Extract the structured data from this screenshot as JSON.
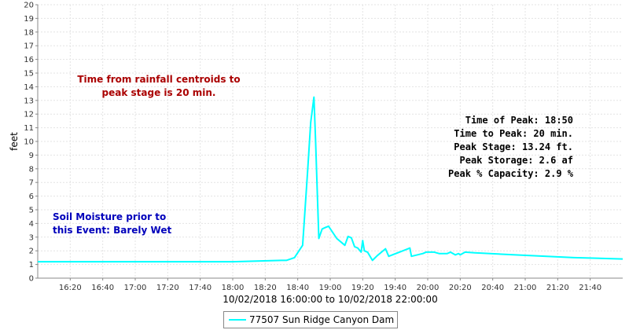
{
  "chart_data": {
    "type": "line",
    "xlabel": "10/02/2018 16:00:00 to 10/02/2018 22:00:00",
    "ylabel": "feet",
    "ylim": [
      0,
      20
    ],
    "yticks": [
      0,
      1,
      2,
      3,
      4,
      5,
      6,
      7,
      8,
      9,
      10,
      11,
      12,
      13,
      14,
      15,
      16,
      17,
      18,
      19,
      20
    ],
    "xlim": [
      "16:00",
      "22:00"
    ],
    "xticks": [
      "16:20",
      "16:40",
      "17:00",
      "17:20",
      "17:40",
      "18:00",
      "18:20",
      "18:40",
      "19:00",
      "19:20",
      "19:40",
      "20:00",
      "20:20",
      "20:40",
      "21:00",
      "21:20",
      "21:40"
    ],
    "grid": true,
    "legend_position": "bottom-center",
    "series": [
      {
        "name": "77507 Sun Ridge Canyon Dam",
        "color": "#00ffff",
        "x": [
          "16:00",
          "18:00",
          "18:30",
          "18:33",
          "18:38",
          "18:43",
          "18:46",
          "18:48",
          "18:50",
          "18:51",
          "18:53",
          "18:55",
          "18:57",
          "18:59",
          "19:04",
          "19:09",
          "19:11",
          "19:13",
          "19:15",
          "19:17",
          "19:19",
          "19:20",
          "19:21",
          "19:23",
          "19:26",
          "19:29",
          "19:34",
          "19:36",
          "19:49",
          "19:50",
          "19:57",
          "19:59",
          "20:04",
          "20:07",
          "20:10",
          "20:12",
          "20:14",
          "20:17",
          "20:19",
          "20:20",
          "20:23",
          "20:29",
          "20:54",
          "21:30",
          "22:00"
        ],
        "values": [
          1.2,
          1.2,
          1.3,
          1.3,
          1.5,
          2.4,
          7.7,
          11.4,
          13.24,
          10.0,
          2.9,
          3.6,
          3.7,
          3.8,
          2.9,
          2.4,
          3.05,
          2.95,
          2.3,
          2.2,
          1.9,
          2.75,
          2.0,
          1.9,
          1.3,
          1.65,
          2.15,
          1.6,
          2.2,
          1.6,
          1.8,
          1.9,
          1.9,
          1.8,
          1.8,
          1.8,
          1.9,
          1.7,
          1.8,
          1.7,
          1.9,
          1.85,
          1.7,
          1.5,
          1.4
        ]
      }
    ],
    "annotations": {
      "time_from_centroids": [
        "Time from rainfall centroids to",
        "peak stage is 20 min."
      ],
      "soil_moisture": [
        "Soil Moisture prior to",
        "this Event: Barely Wet"
      ],
      "peak_stats": [
        "Time of Peak: 18:50",
        "Time to Peak: 20 min.",
        "Peak Stage: 13.24 ft.",
        "Peak Storage: 2.6 af",
        "Peak % Capacity: 2.9 %"
      ]
    }
  }
}
